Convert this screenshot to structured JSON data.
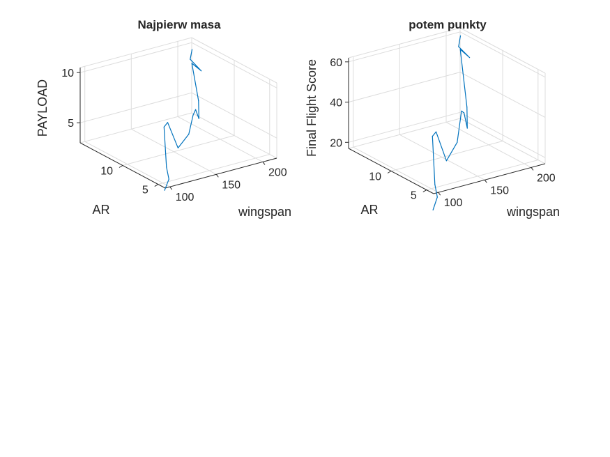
{
  "figure": {
    "background": "#ffffff",
    "line_color": "#0072BD",
    "grid_color": "#dcdcdc",
    "axis_color": "#262626"
  },
  "chart_data": [
    {
      "type": "line3d",
      "title": "Najpierw masa",
      "xlabel": "wingspan",
      "ylabel": "AR",
      "zlabel": "PAYLOAD",
      "xlim": [
        95,
        215
      ],
      "ylim": [
        4,
        16
      ],
      "zlim": [
        3,
        10.5
      ],
      "xticks": [
        100,
        150,
        200
      ],
      "yticks": [
        5,
        10
      ],
      "zticks": [
        5,
        10
      ],
      "grid": true,
      "view": "3d",
      "series": [
        {
          "x": [
            105,
            115,
            120,
            125,
            135,
            150,
            160,
            170,
            175,
            180,
            185,
            190,
            200,
            205,
            210
          ],
          "y": [
            5.4,
            6.1,
            7.1,
            8.1,
            8.9,
            9.4,
            9.2,
            9.9,
            10.2,
            10.4,
            11.1,
            12.7,
            12.7,
            14.9,
            15.3
          ],
          "z": [
            2.0,
            2.6,
            3.3,
            6.8,
            6.7,
            3.6,
            4.8,
            6.2,
            6.5,
            5.4,
            6.8,
            9.8,
            8.8,
            9.0,
            9.7
          ]
        }
      ]
    },
    {
      "type": "line3d",
      "title": "potem punkty",
      "xlabel": "wingspan",
      "ylabel": "AR",
      "zlabel": "Final Flight Score",
      "xlim": [
        95,
        215
      ],
      "ylim": [
        4,
        16
      ],
      "zlim": [
        17,
        62
      ],
      "xticks": [
        100,
        150,
        200
      ],
      "yticks": [
        5,
        10
      ],
      "zticks": [
        20,
        40,
        60
      ],
      "grid": true,
      "view": "3d",
      "series": [
        {
          "x": [
            105,
            115,
            120,
            125,
            135,
            150,
            160,
            170,
            175,
            180,
            185,
            190,
            200,
            205,
            210
          ],
          "y": [
            5.4,
            6.1,
            7.1,
            8.1,
            8.9,
            9.4,
            9.2,
            9.9,
            10.2,
            10.4,
            11.1,
            12.7,
            12.7,
            14.9,
            15.3
          ],
          "z": [
            5.0,
            8.9,
            12.7,
            34.1,
            33.6,
            16.4,
            24.7,
            37.7,
            35.6,
            27.0,
            35.5,
            60.6,
            55.3,
            56.0,
            60.0
          ]
        }
      ]
    }
  ]
}
